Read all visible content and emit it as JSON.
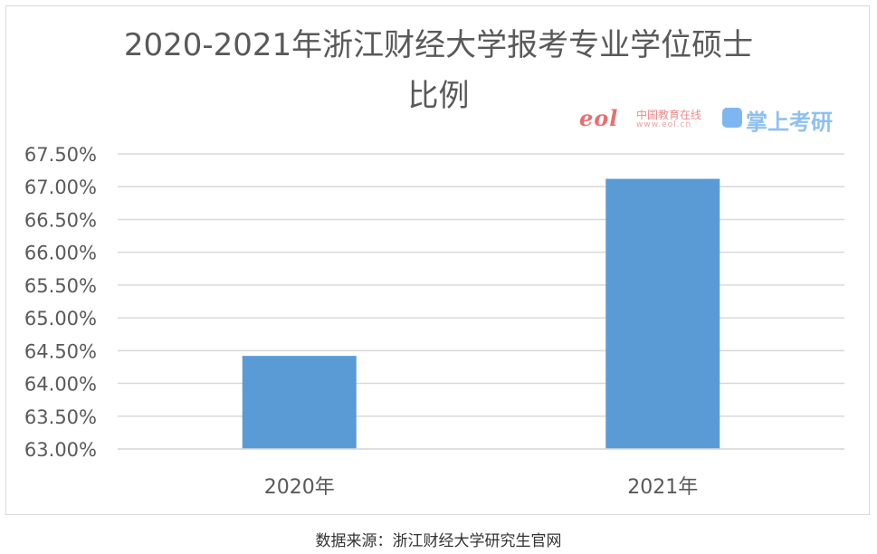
{
  "chart_data": {
    "type": "bar",
    "title_line1": "2020-2021年浙江财经大学报考专业学位硕士",
    "title_line2": "比例",
    "categories": [
      "2020年",
      "2021年"
    ],
    "values": [
      64.42,
      67.12
    ],
    "ylim": [
      63.0,
      67.5
    ],
    "ytick_step": 0.5,
    "ytick_labels": [
      "63.00%",
      "63.50%",
      "64.00%",
      "64.50%",
      "65.00%",
      "65.50%",
      "66.00%",
      "66.50%",
      "67.00%",
      "67.50%"
    ],
    "grid": true,
    "bar_color": "#5b9bd5",
    "grid_color": "#d9d9d9",
    "text_color": "#595959"
  },
  "watermark": {
    "logo_text": "eol",
    "site_name": "中国教育在线",
    "site_url": "www.eol.cn",
    "app_name": "掌上考研"
  },
  "caption": "数据来源：浙江财经大学研究生官网"
}
